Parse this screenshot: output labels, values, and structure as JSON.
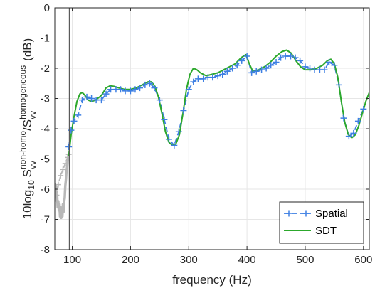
{
  "chart_data": {
    "type": "line",
    "title": "",
    "xlabel": "frequency (Hz)",
    "ylabel_parts": {
      "prefix": "10log",
      "prefix_sub": "10",
      "num_base": "S",
      "num_sup": "non-homo",
      "num_sub": "vv",
      "slash": "/",
      "den_base": "S",
      "den_sup": "homogeneous",
      "den_sub": "vv",
      "suffix": "(dB)"
    },
    "xlim": [
      70,
      610
    ],
    "ylim": [
      -8,
      0
    ],
    "xticks": [
      100,
      200,
      300,
      400,
      500,
      600
    ],
    "yticks": [
      0,
      -1,
      -2,
      -3,
      -4,
      -5,
      -6,
      -7,
      -8
    ],
    "grid": true,
    "cutoff_line_x": 95,
    "legend": {
      "position": "bottom-right"
    },
    "colors": {
      "spatial": "#3d7fe3",
      "sdt": "#2ca82c",
      "gray": "#b8b8b8",
      "grid": "#e6e6e6",
      "cutoff": "#5a5a5a"
    },
    "series": [
      {
        "name": "Spatial",
        "style": "dashed-plus",
        "x": [
          94,
          98,
          103,
          110,
          117,
          125,
          133,
          141,
          150,
          158,
          166,
          175,
          183,
          191,
          200,
          208,
          216,
          225,
          233,
          241,
          250,
          258,
          266,
          275,
          283,
          291,
          300,
          308,
          316,
          325,
          333,
          341,
          350,
          358,
          366,
          375,
          383,
          391,
          400,
          408,
          416,
          425,
          433,
          441,
          450,
          458,
          466,
          475,
          483,
          491,
          500,
          508,
          516,
          525,
          533,
          541,
          550,
          558,
          566,
          575,
          583,
          591,
          600
        ],
        "y": [
          -4.6,
          -4.05,
          -3.75,
          -3.55,
          -3.05,
          -2.95,
          -3.0,
          -3.05,
          -3.05,
          -2.85,
          -2.7,
          -2.7,
          -2.7,
          -2.75,
          -2.75,
          -2.7,
          -2.65,
          -2.55,
          -2.5,
          -2.65,
          -3.05,
          -3.7,
          -4.35,
          -4.55,
          -4.1,
          -3.4,
          -2.7,
          -2.45,
          -2.35,
          -2.35,
          -2.3,
          -2.3,
          -2.25,
          -2.2,
          -2.1,
          -2.0,
          -1.9,
          -1.75,
          -1.6,
          -2.15,
          -2.1,
          -2.05,
          -2.0,
          -1.9,
          -1.8,
          -1.65,
          -1.6,
          -1.6,
          -1.65,
          -1.75,
          -1.95,
          -2.0,
          -2.05,
          -2.05,
          -2.05,
          -1.8,
          -1.9,
          -2.55,
          -3.65,
          -4.25,
          -4.15,
          -3.75,
          -3.35
        ]
      },
      {
        "name": "SDT",
        "style": "solid",
        "x": [
          94,
          98,
          103,
          108,
          113,
          117,
          122,
          127,
          133,
          140,
          150,
          158,
          165,
          172,
          180,
          190,
          200,
          210,
          220,
          230,
          236,
          242,
          248,
          254,
          260,
          266,
          272,
          278,
          284,
          290,
          296,
          302,
          308,
          314,
          320,
          330,
          340,
          350,
          360,
          370,
          380,
          390,
          398,
          404,
          410,
          420,
          430,
          440,
          450,
          460,
          468,
          476,
          484,
          492,
          500,
          510,
          520,
          530,
          538,
          544,
          550,
          556,
          562,
          568,
          574,
          580,
          586,
          592,
          598,
          604,
          610
        ],
        "y": [
          -4.9,
          -4.2,
          -3.6,
          -3.1,
          -2.85,
          -2.8,
          -2.9,
          -3.05,
          -3.1,
          -3.05,
          -2.9,
          -2.65,
          -2.58,
          -2.6,
          -2.65,
          -2.7,
          -2.7,
          -2.65,
          -2.55,
          -2.45,
          -2.45,
          -2.6,
          -2.95,
          -3.5,
          -4.1,
          -4.45,
          -4.55,
          -4.5,
          -4.2,
          -3.5,
          -2.7,
          -2.2,
          -2.0,
          -2.05,
          -2.15,
          -2.25,
          -2.2,
          -2.15,
          -2.05,
          -1.95,
          -1.85,
          -1.65,
          -1.55,
          -1.85,
          -2.1,
          -2.05,
          -1.95,
          -1.8,
          -1.6,
          -1.45,
          -1.4,
          -1.5,
          -1.75,
          -1.95,
          -2.05,
          -2.05,
          -2.0,
          -1.9,
          -1.75,
          -1.7,
          -1.85,
          -2.3,
          -3.1,
          -3.8,
          -4.2,
          -4.3,
          -4.2,
          -3.9,
          -3.5,
          -3.1,
          -2.8
        ]
      },
      {
        "name": "",
        "style": "gray-dashed-plus",
        "x": [
          73,
          76,
          80,
          84,
          88,
          92,
          94
        ],
        "y": [
          -6.2,
          -5.85,
          -5.55,
          -5.35,
          -5.15,
          -4.95,
          -4.85
        ]
      },
      {
        "name": "",
        "style": "gray-jagged",
        "x": [
          70,
          71,
          72,
          73,
          74,
          75,
          76,
          77,
          78,
          79,
          80,
          81,
          82,
          83,
          84,
          85,
          86,
          87,
          88,
          89,
          90,
          91,
          92,
          93,
          94
        ],
        "y": [
          -5.8,
          -6.1,
          -5.9,
          -6.4,
          -6.2,
          -6.6,
          -6.4,
          -6.7,
          -6.5,
          -6.9,
          -6.6,
          -6.95,
          -6.7,
          -6.9,
          -6.5,
          -6.75,
          -6.4,
          -6.3,
          -5.9,
          -5.7,
          -5.4,
          -5.3,
          -5.05,
          -5.0,
          -4.9
        ]
      }
    ]
  }
}
